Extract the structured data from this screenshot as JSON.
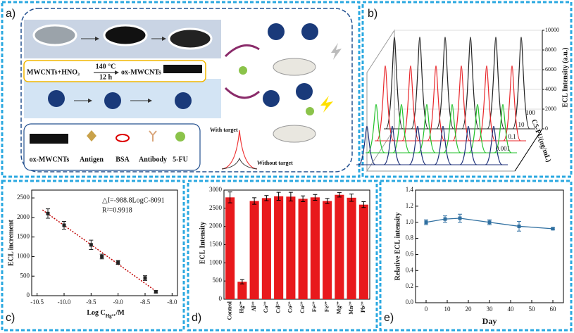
{
  "panel_labels": [
    "a)",
    "b)",
    "c)",
    "d)",
    "e)"
  ],
  "diagram": {
    "step_text": "MWCNTs+HNO₃",
    "condition_temp": "140 °C",
    "condition_time": "12 h",
    "product": "ox-MWCNTs",
    "legend": [
      "ox-MWCNTs",
      "Antigen",
      "BSA",
      "Antibody",
      "5-FU"
    ],
    "with_target": "With target",
    "without_target": "Without target"
  },
  "chart_data": [
    {
      "type": "waterfall",
      "ylabel": "ECL Intensity (a.u.)",
      "zlabel": "C5-FU(ng/mL)",
      "ylim": [
        0,
        10000
      ],
      "yticks": [
        0,
        2000,
        4000,
        6000,
        8000,
        10000
      ],
      "series": [
        {
          "name": "100",
          "color": "#222222",
          "values": [
            9300,
            9300,
            9300,
            9300,
            9300,
            9300
          ]
        },
        {
          "name": "10",
          "color": "#e8262a",
          "values": [
            7600,
            7600,
            7600,
            7600,
            7600,
            7600
          ]
        },
        {
          "name": "0.1",
          "color": "#22c22a",
          "values": [
            4900,
            4900,
            4900,
            4900,
            4900,
            4900
          ]
        },
        {
          "name": "0.001",
          "color": "#1c2f78",
          "values": [
            3900,
            3900,
            3900,
            3900,
            3900,
            3900
          ]
        }
      ]
    },
    {
      "type": "scatter",
      "xlabel": "Log C",
      "xlabel_sub": "Hg²⁺",
      "xlabel_end": "/M",
      "ylabel": "ECL increment",
      "annotations": [
        "△I=-988.8LogC-8091",
        "R²=0.9918"
      ],
      "fit": {
        "slope": -988.8,
        "intercept": -8091
      },
      "fit_color": "#c00000",
      "x": [
        -10.3,
        -10,
        -9.5,
        -9.3,
        -9,
        -8.5,
        -8.3
      ],
      "values": [
        2100,
        1800,
        1300,
        1000,
        850,
        450,
        100
      ],
      "errors": [
        120,
        100,
        120,
        60,
        50,
        60,
        30
      ],
      "xlim": [
        -10.6,
        -7.9
      ],
      "xticks": [
        -10.5,
        {
          "value": -10,
          "label": "-10.0"
        },
        -9.5,
        {
          "value": -9,
          "label": "-9.0"
        },
        -8.5,
        {
          "value": -8,
          "label": "-8.0"
        }
      ],
      "ylim": [
        0,
        2700
      ],
      "yticks": [
        0,
        500,
        1000,
        1500,
        2000,
        2500
      ],
      "color": "#222222"
    },
    {
      "type": "bar",
      "ylabel": "ECL Intensity",
      "color": "#e8191c",
      "categories": [
        "Control",
        "Hg²⁺",
        "Al³⁺",
        "Ca²⁺",
        "Cd²⁺",
        "Co²⁺",
        "Cu²⁺",
        "Fe²⁺",
        "Fe³⁺",
        "Mg²⁺",
        "Mn²⁺",
        "Pb²⁺"
      ],
      "values": [
        2800,
        480,
        2700,
        2780,
        2830,
        2820,
        2760,
        2800,
        2700,
        2870,
        2790,
        2600
      ],
      "errors": [
        150,
        60,
        90,
        70,
        110,
        120,
        80,
        80,
        70,
        60,
        100,
        80
      ],
      "ylim": [
        0,
        3000
      ],
      "yticks": [
        0,
        500,
        1000,
        1500,
        2000,
        2500,
        3000
      ]
    },
    {
      "type": "line",
      "xlabel": "Day",
      "ylabel": "Relative ECL intensity",
      "color": "#2f6fa0",
      "x": [
        0,
        9,
        16,
        30,
        44,
        60
      ],
      "values": [
        1.0,
        1.04,
        1.05,
        1.0,
        0.95,
        0.92
      ],
      "errors": [
        0.03,
        0.04,
        0.05,
        0.03,
        0.06,
        0.01
      ],
      "xlim": [
        -5,
        65
      ],
      "xticks": [
        0,
        10,
        20,
        30,
        40,
        50,
        60
      ],
      "ylim": [
        0,
        1.4
      ],
      "yticks": [
        {
          "value": 0,
          "label": "0.0"
        },
        0.2,
        0.4,
        0.6,
        0.8,
        {
          "value": 1,
          "label": "1.0"
        },
        1.2,
        1.4
      ]
    }
  ]
}
